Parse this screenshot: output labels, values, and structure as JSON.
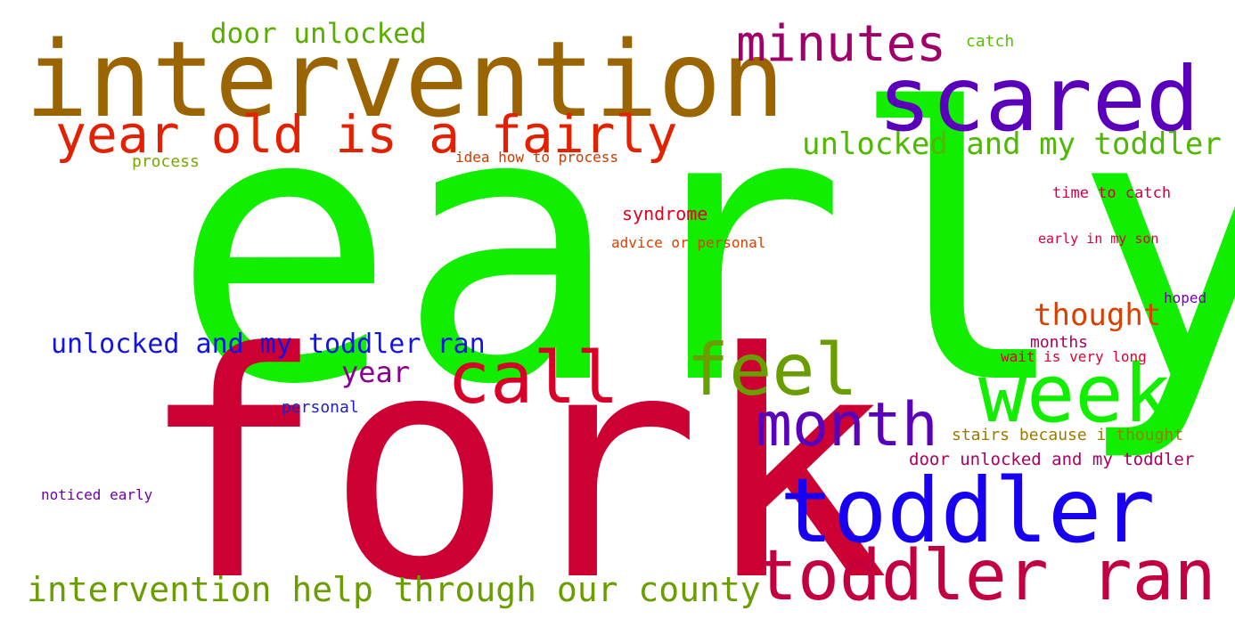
{
  "words": {
    "early": {
      "text": "early",
      "color": "#12ee00"
    },
    "fork": {
      "text": "fork",
      "color": "#cc0033"
    },
    "intervention": {
      "text": "intervention",
      "color": "#9a6400"
    },
    "scared": {
      "text": "scared",
      "color": "#5a00bb"
    },
    "week": {
      "text": "week",
      "color": "#12ee00"
    },
    "toddler": {
      "text": "toddler",
      "color": "#1700f0"
    },
    "toddler_ran": {
      "text": "toddler ran",
      "color": "#c3003f"
    },
    "minutes": {
      "text": "minutes",
      "color": "#a0006a"
    },
    "year_old": {
      "text": "year old is a fairly",
      "color": "#e32000"
    },
    "call": {
      "text": "call",
      "color": "#d80028"
    },
    "feel": {
      "text": "feel",
      "color": "#6a9e00"
    },
    "month": {
      "text": "month",
      "color": "#5a00bb"
    },
    "door_unlocked": {
      "text": "door unlocked",
      "color": "#5aae00"
    },
    "unlocked_my": {
      "text": "unlocked and my toddler",
      "color": "#4fb800"
    },
    "unlocked_ran": {
      "text": "unlocked and my toddler ran",
      "color": "#1414e0"
    },
    "thought": {
      "text": "thought",
      "color": "#d84000"
    },
    "year": {
      "text": "year",
      "color": "#8a0090"
    },
    "intervention_help": {
      "text": "intervention help through our county",
      "color": "#6a9e00"
    },
    "catch": {
      "text": "catch",
      "color": "#5ac000"
    },
    "process": {
      "text": "process",
      "color": "#7aa800"
    },
    "idea": {
      "text": "idea how to process",
      "color": "#cc3a00"
    },
    "syndrome": {
      "text": "syndrome",
      "color": "#e00020"
    },
    "time_to_catch": {
      "text": "time to catch",
      "color": "#cc0044"
    },
    "advice": {
      "text": "advice or personal",
      "color": "#d84000"
    },
    "early_in": {
      "text": "early in my son",
      "color": "#d8003a"
    },
    "hoped": {
      "text": "hoped",
      "color": "#7a00aa"
    },
    "months": {
      "text": "months",
      "color": "#aa0060"
    },
    "wait": {
      "text": "wait is very long",
      "color": "#dd0030"
    },
    "personal": {
      "text": "personal",
      "color": "#2020cc"
    },
    "stairs": {
      "text": "stairs because i thought",
      "color": "#9a7a00"
    },
    "door_unlocked_my": {
      "text": "door unlocked and my toddler",
      "color": "#aa0060"
    },
    "noticed": {
      "text": "noticed early",
      "color": "#7000aa"
    }
  }
}
